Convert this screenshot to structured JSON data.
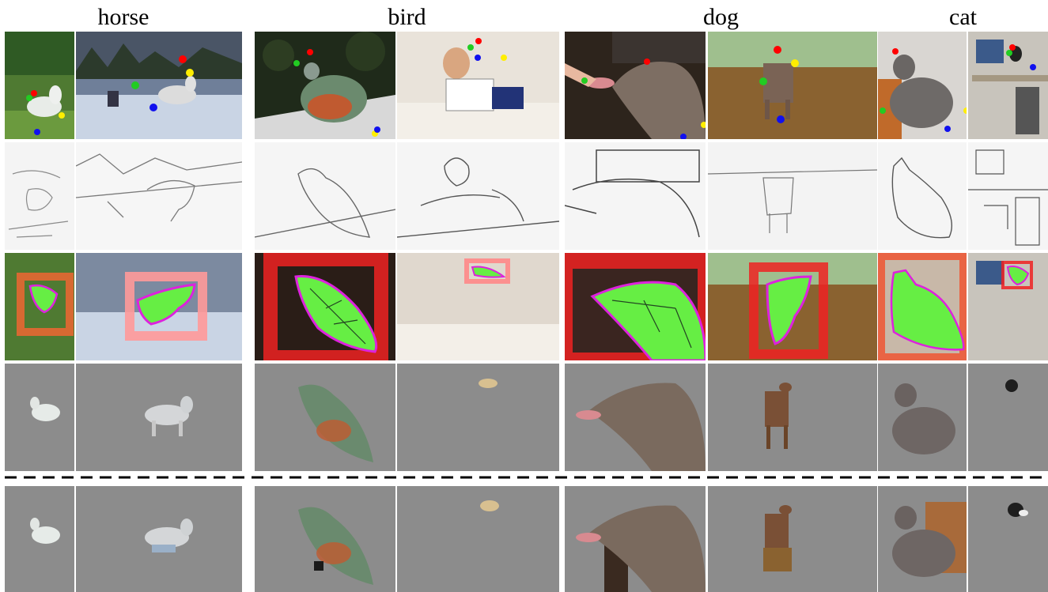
{
  "columns": [
    {
      "title": "horse"
    },
    {
      "title": "bird"
    },
    {
      "title": "dog"
    },
    {
      "title": "cat"
    }
  ],
  "rows": [
    "keypoint-annotated-images",
    "edge-maps",
    "mask-overlays",
    "segmentation-results",
    "ground-truth-masks"
  ],
  "colors": {
    "keypoint_red": "#ff0000",
    "keypoint_green": "#22cc22",
    "keypoint_yellow": "#ffee00",
    "keypoint_blue": "#1010ee",
    "mask_green": "#66ee44",
    "mask_outline": "#dd22dd",
    "box_red": "#ee2222",
    "box_pink": "#ff9999",
    "result_background": "#8c8c8c",
    "separator": "#000000"
  }
}
